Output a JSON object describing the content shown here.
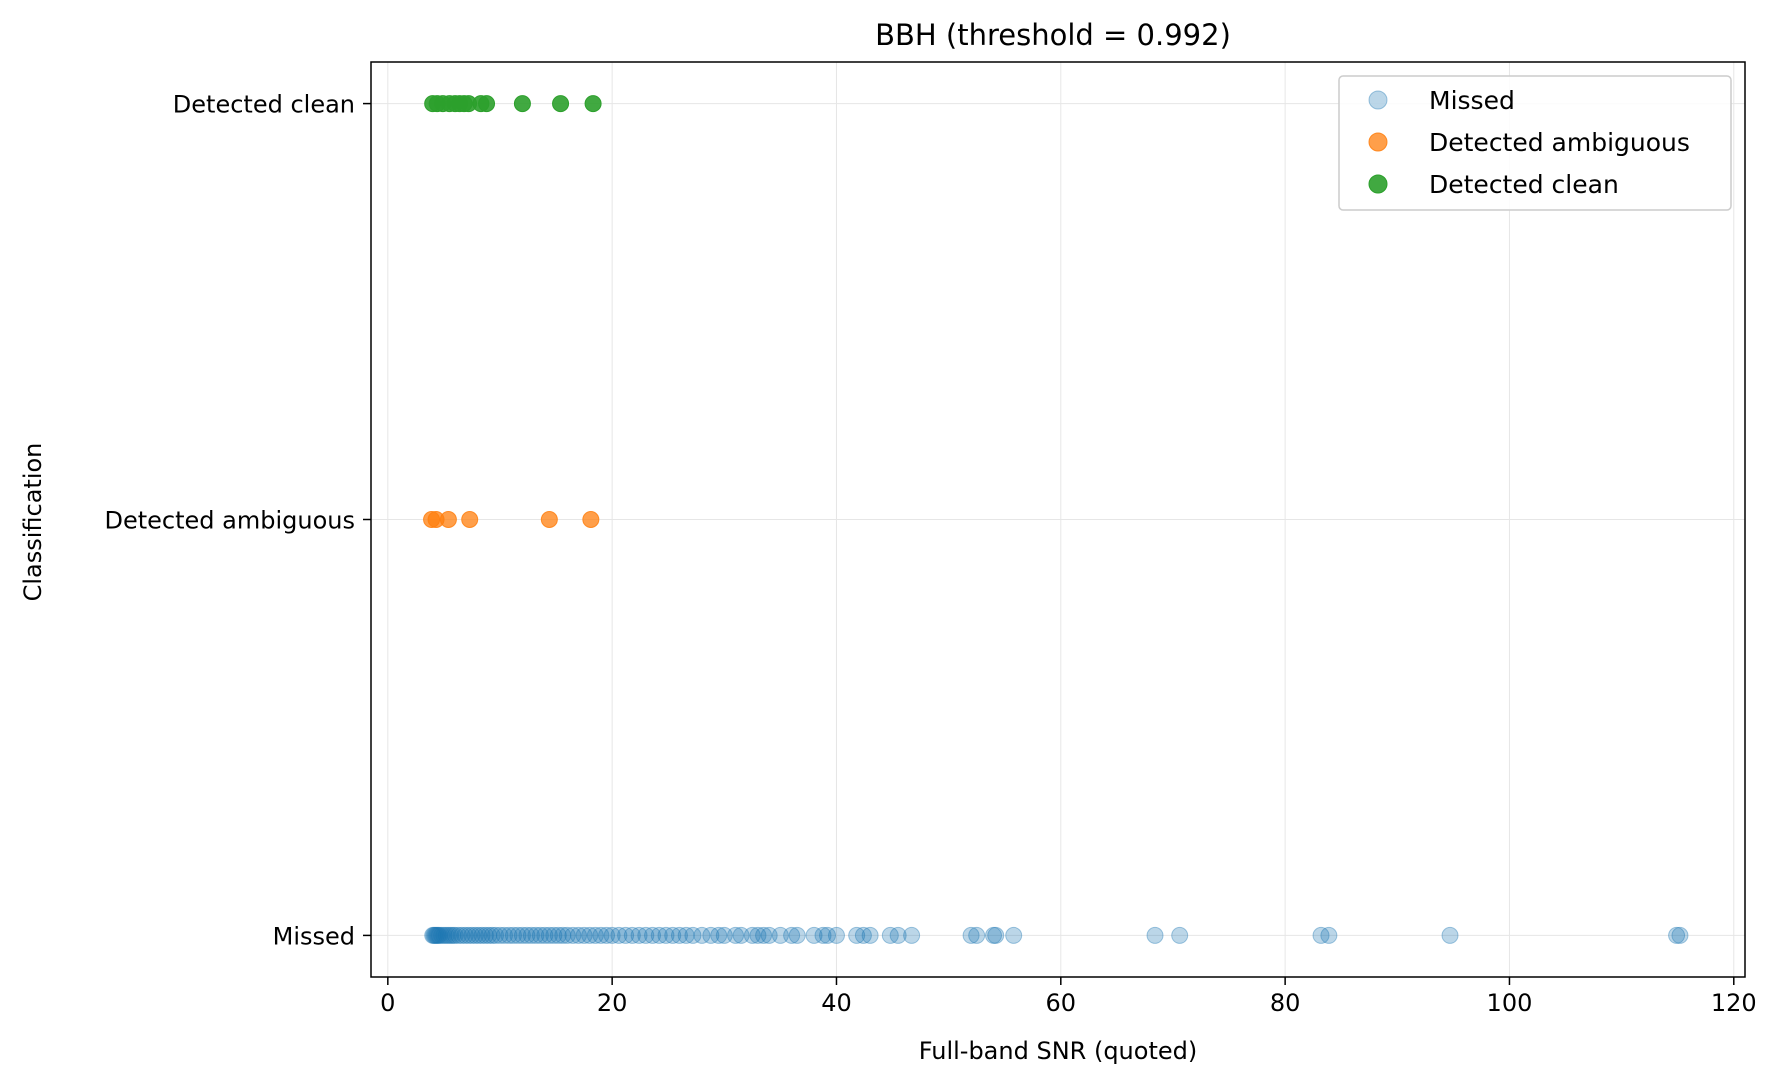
{
  "chart_data": {
    "type": "scatter",
    "title": "BBH  (threshold = 0.992)",
    "xlabel": "Full-band SNR (quoted)",
    "ylabel": "Classification",
    "xlim": [
      -1.5,
      121
    ],
    "ylim": [
      -0.1,
      2.1
    ],
    "xticks": [
      0,
      20,
      40,
      60,
      80,
      100,
      120
    ],
    "xtick_labels": [
      "0",
      "20",
      "40",
      "60",
      "80",
      "100",
      "120"
    ],
    "yticks": [
      0,
      1,
      2
    ],
    "ytick_labels": [
      "Missed",
      "Detected ambiguous",
      "Detected clean"
    ],
    "grid": true,
    "legend_position": "top-right",
    "series": [
      {
        "name": "Missed",
        "color": "#1f77b4",
        "opacity": 0.3,
        "y": 0,
        "x": [
          4.0,
          4.1,
          4.2,
          4.3,
          4.4,
          4.5,
          4.6,
          4.8,
          5.0,
          5.2,
          5.4,
          5.6,
          5.8,
          6.0,
          6.3,
          6.6,
          6.9,
          7.2,
          7.5,
          7.8,
          8.1,
          8.4,
          8.7,
          9.0,
          9.3,
          9.6,
          10.0,
          10.4,
          10.8,
          11.2,
          11.6,
          12.0,
          12.4,
          12.8,
          13.2,
          13.6,
          14.0,
          14.4,
          14.8,
          15.2,
          15.6,
          16.0,
          16.5,
          17.0,
          17.5,
          18.0,
          18.5,
          19.0,
          19.5,
          20.0,
          20.6,
          21.2,
          21.8,
          22.4,
          23.0,
          23.6,
          24.2,
          24.8,
          25.4,
          26.0,
          26.6,
          27.2,
          28.0,
          28.8,
          29.5,
          30.0,
          31.0,
          31.5,
          32.5,
          33.0,
          33.5,
          34.0,
          35.0,
          36.0,
          36.5,
          38.0,
          38.8,
          39.2,
          40.0,
          41.8,
          42.4,
          43.0,
          44.8,
          45.5,
          46.7,
          52.0,
          52.5,
          54.0,
          54.2,
          55.8,
          68.4,
          70.6,
          83.2,
          83.9,
          94.7,
          114.9,
          115.2
        ]
      },
      {
        "name": "Detected ambiguous",
        "color": "#ff7f0e",
        "opacity": 0.75,
        "y": 1,
        "x": [
          3.9,
          4.3,
          5.4,
          7.3,
          14.4,
          18.1
        ]
      },
      {
        "name": "Detected clean",
        "color": "#2ca02c",
        "opacity": 0.9,
        "y": 2,
        "x": [
          4.0,
          4.4,
          4.9,
          5.5,
          6.0,
          6.4,
          6.8,
          7.2,
          8.3,
          8.8,
          12.0,
          15.4,
          18.3
        ]
      }
    ]
  }
}
